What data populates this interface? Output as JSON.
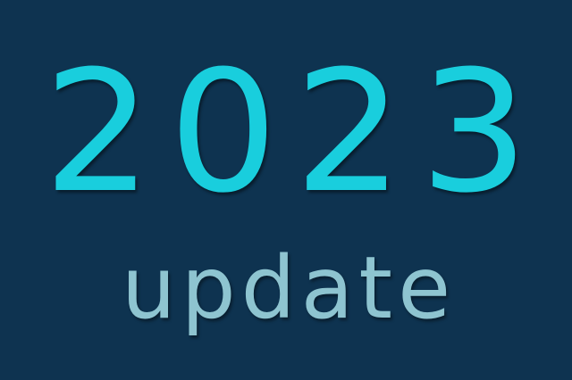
{
  "graphic": {
    "year": "2023",
    "label": "update"
  },
  "colors": {
    "background": "#0e3350",
    "year_text": "#19cedd",
    "label_text": "#8ec4d0"
  }
}
